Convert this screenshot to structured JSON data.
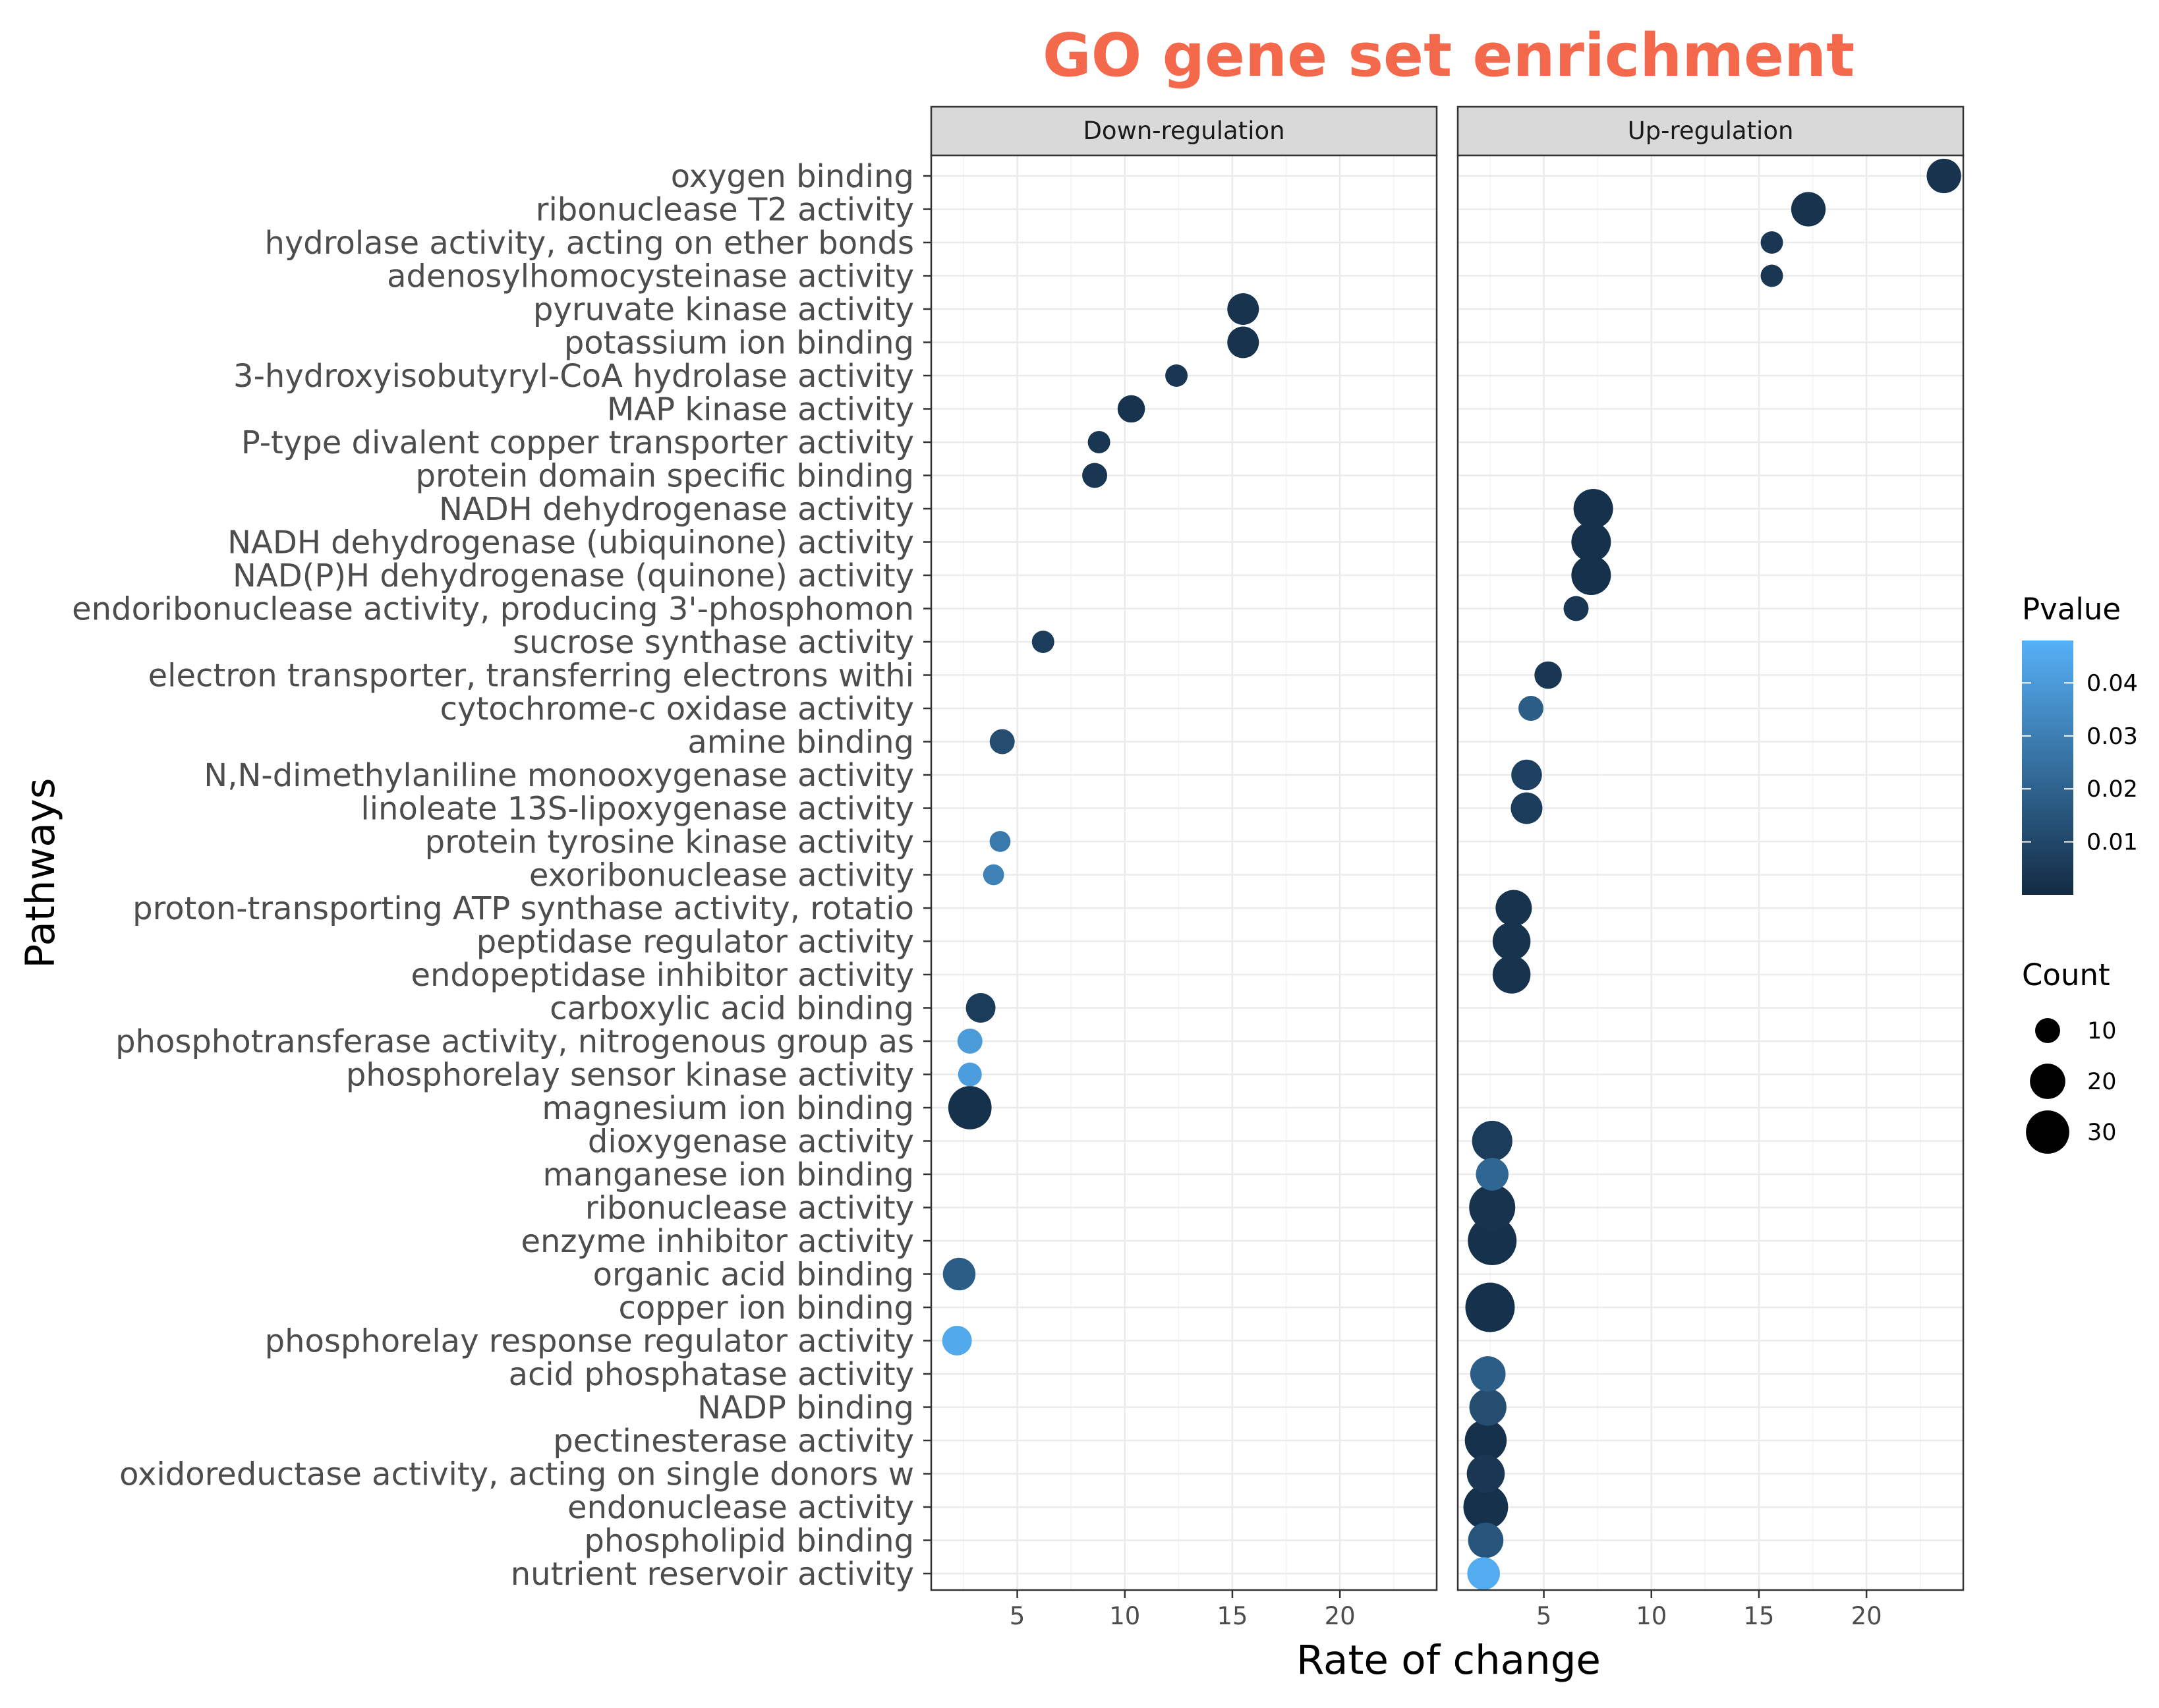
{
  "chart_data": {
    "type": "scatter",
    "title": "GO gene set enrichment",
    "title_color": "#f4684c",
    "xlabel": "Rate of change",
    "ylabel": "Pathways",
    "xlim": [
      1,
      24.5
    ],
    "x_ticks": [
      5,
      10,
      15,
      20
    ],
    "grid": true,
    "pathways": [
      "oxygen binding",
      "ribonuclease T2 activity",
      "hydrolase activity, acting on ether bonds",
      "adenosylhomocysteinase activity",
      "pyruvate kinase activity",
      "potassium ion binding",
      "3-hydroxyisobutyryl-CoA hydrolase activity",
      "MAP kinase activity",
      "P-type divalent copper transporter activity",
      "protein domain specific binding",
      "NADH dehydrogenase activity",
      "NADH dehydrogenase (ubiquinone) activity",
      "NAD(P)H dehydrogenase (quinone) activity",
      "endoribonuclease activity, producing 3'-phosphomon",
      "sucrose synthase activity",
      "electron transporter, transferring electrons withi",
      "cytochrome-c oxidase activity",
      "amine binding",
      "N,N-dimethylaniline monooxygenase activity",
      "linoleate 13S-lipoxygenase activity",
      "protein tyrosine kinase activity",
      "exoribonuclease activity",
      "proton-transporting ATP synthase activity, rotatio",
      "peptidase regulator activity",
      "endopeptidase inhibitor activity",
      "carboxylic acid binding",
      "phosphotransferase activity, nitrogenous group as",
      "phosphorelay sensor kinase activity",
      "magnesium ion binding",
      "dioxygenase activity",
      "manganese ion binding",
      "ribonuclease activity",
      "enzyme inhibitor activity",
      "organic acid binding",
      "copper ion binding",
      "phosphorelay response regulator activity",
      "acid phosphatase activity",
      "NADP binding",
      "pectinesterase activity",
      "oxidoreductase activity, acting on single donors w",
      "endonuclease activity",
      "phospholipid binding",
      "nutrient reservoir activity"
    ],
    "panels": [
      {
        "name": "Down-regulation",
        "points": [
          {
            "pathway": "pyruvate kinase activity",
            "x": 15.5,
            "count": 16,
            "pvalue": 0.003
          },
          {
            "pathway": "potassium ion binding",
            "x": 15.5,
            "count": 16,
            "pvalue": 0.003
          },
          {
            "pathway": "3-hydroxyisobutyryl-CoA hydrolase activity",
            "x": 12.4,
            "count": 8,
            "pvalue": 0.004
          },
          {
            "pathway": "MAP kinase activity",
            "x": 10.3,
            "count": 12,
            "pvalue": 0.003
          },
          {
            "pathway": "P-type divalent copper transporter activity",
            "x": 8.8,
            "count": 8,
            "pvalue": 0.004
          },
          {
            "pathway": "protein domain specific binding",
            "x": 8.6,
            "count": 10,
            "pvalue": 0.004
          },
          {
            "pathway": "sucrose synthase activity",
            "x": 6.2,
            "count": 8,
            "pvalue": 0.006
          },
          {
            "pathway": "amine binding",
            "x": 4.3,
            "count": 10,
            "pvalue": 0.012
          },
          {
            "pathway": "protein tyrosine kinase activity",
            "x": 4.2,
            "count": 7,
            "pvalue": 0.028
          },
          {
            "pathway": "exoribonuclease activity",
            "x": 3.9,
            "count": 7,
            "pvalue": 0.031
          },
          {
            "pathway": "carboxylic acid binding",
            "x": 3.3,
            "count": 14,
            "pvalue": 0.006
          },
          {
            "pathway": "phosphotransferase activity, nitrogenous group as",
            "x": 2.8,
            "count": 10,
            "pvalue": 0.04
          },
          {
            "pathway": "phosphorelay sensor kinase activity",
            "x": 2.8,
            "count": 9,
            "pvalue": 0.041
          },
          {
            "pathway": "magnesium ion binding",
            "x": 2.8,
            "count": 30,
            "pvalue": 0.002
          },
          {
            "pathway": "organic acid binding",
            "x": 2.3,
            "count": 17,
            "pvalue": 0.018
          },
          {
            "pathway": "phosphorelay response regulator activity",
            "x": 2.2,
            "count": 14,
            "pvalue": 0.045
          }
        ]
      },
      {
        "name": "Up-regulation",
        "points": [
          {
            "pathway": "oxygen binding",
            "x": 23.6,
            "count": 19,
            "pvalue": 0.003
          },
          {
            "pathway": "ribonuclease T2 activity",
            "x": 17.3,
            "count": 19,
            "pvalue": 0.003
          },
          {
            "pathway": "hydrolase activity, acting on ether bonds",
            "x": 15.6,
            "count": 8,
            "pvalue": 0.004
          },
          {
            "pathway": "adenosylhomocysteinase activity",
            "x": 15.6,
            "count": 8,
            "pvalue": 0.004
          },
          {
            "pathway": "NADH dehydrogenase activity",
            "x": 7.3,
            "count": 25,
            "pvalue": 0.002
          },
          {
            "pathway": "NADH dehydrogenase (ubiquinone) activity",
            "x": 7.2,
            "count": 25,
            "pvalue": 0.002
          },
          {
            "pathway": "NAD(P)H dehydrogenase (quinone) activity",
            "x": 7.2,
            "count": 25,
            "pvalue": 0.002
          },
          {
            "pathway": "endoribonuclease activity, producing 3'-phosphomon",
            "x": 6.5,
            "count": 10,
            "pvalue": 0.004
          },
          {
            "pathway": "electron transporter, transferring electrons withi",
            "x": 5.2,
            "count": 12,
            "pvalue": 0.004
          },
          {
            "pathway": "cytochrome-c oxidase activity",
            "x": 4.4,
            "count": 10,
            "pvalue": 0.018
          },
          {
            "pathway": "N,N-dimethylaniline monooxygenase activity",
            "x": 4.2,
            "count": 15,
            "pvalue": 0.008
          },
          {
            "pathway": "linoleate 13S-lipoxygenase activity",
            "x": 4.2,
            "count": 16,
            "pvalue": 0.006
          },
          {
            "pathway": "proton-transporting ATP synthase activity, rotatio",
            "x": 3.6,
            "count": 21,
            "pvalue": 0.003
          },
          {
            "pathway": "peptidase regulator activity",
            "x": 3.5,
            "count": 23,
            "pvalue": 0.003
          },
          {
            "pathway": "endopeptidase inhibitor activity",
            "x": 3.5,
            "count": 23,
            "pvalue": 0.003
          },
          {
            "pathway": "dioxygenase activity",
            "x": 2.6,
            "count": 26,
            "pvalue": 0.006
          },
          {
            "pathway": "manganese ion binding",
            "x": 2.6,
            "count": 17,
            "pvalue": 0.021
          },
          {
            "pathway": "ribonuclease activity",
            "x": 2.6,
            "count": 34,
            "pvalue": 0.003
          },
          {
            "pathway": "enzyme inhibitor activity",
            "x": 2.6,
            "count": 38,
            "pvalue": 0.002
          },
          {
            "pathway": "copper ion binding",
            "x": 2.5,
            "count": 39,
            "pvalue": 0.002
          },
          {
            "pathway": "acid phosphatase activity",
            "x": 2.4,
            "count": 20,
            "pvalue": 0.018
          },
          {
            "pathway": "NADP binding",
            "x": 2.4,
            "count": 22,
            "pvalue": 0.012
          },
          {
            "pathway": "pectinesterase activity",
            "x": 2.3,
            "count": 28,
            "pvalue": 0.002
          },
          {
            "pathway": "oxidoreductase activity, acting on single donors w",
            "x": 2.3,
            "count": 23,
            "pvalue": 0.004
          },
          {
            "pathway": "endonuclease activity",
            "x": 2.3,
            "count": 32,
            "pvalue": 0.002
          },
          {
            "pathway": "phospholipid binding",
            "x": 2.3,
            "count": 20,
            "pvalue": 0.015
          },
          {
            "pathway": "nutrient reservoir activity",
            "x": 2.2,
            "count": 17,
            "pvalue": 0.046
          }
        ]
      }
    ],
    "legend": {
      "color_title": "Pvalue",
      "color_ticks": [
        0.04,
        0.03,
        0.02,
        0.01
      ],
      "color_tick_labels": [
        "0.04",
        "0.03",
        "0.02",
        "0.01"
      ],
      "color_range": [
        0.0,
        0.048
      ],
      "color_low": "#132b43",
      "color_high": "#56b1f7",
      "size_title": "Count",
      "size_ticks": [
        10,
        20,
        30
      ],
      "size_tick_labels": [
        "10",
        "20",
        "30"
      ],
      "placement": "right"
    }
  }
}
